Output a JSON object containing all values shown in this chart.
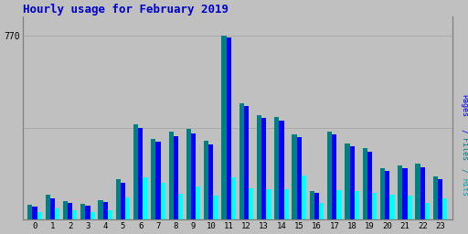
{
  "title": "Hourly usage for February 2019",
  "title_color": "#0000cc",
  "title_fontsize": 9,
  "hours": [
    0,
    1,
    2,
    3,
    4,
    5,
    6,
    7,
    8,
    9,
    10,
    11,
    12,
    13,
    14,
    15,
    16,
    17,
    18,
    19,
    20,
    21,
    22,
    23
  ],
  "pages": [
    55,
    90,
    70,
    58,
    72,
    155,
    385,
    325,
    350,
    360,
    315,
    765,
    475,
    425,
    415,
    345,
    110,
    355,
    305,
    285,
    205,
    215,
    220,
    170
  ],
  "files": [
    62,
    102,
    78,
    65,
    82,
    170,
    398,
    338,
    368,
    380,
    328,
    772,
    488,
    438,
    428,
    358,
    118,
    368,
    318,
    298,
    213,
    228,
    233,
    182
  ],
  "hits": [
    32,
    45,
    38,
    30,
    38,
    92,
    175,
    155,
    108,
    138,
    100,
    175,
    130,
    125,
    128,
    185,
    68,
    122,
    118,
    112,
    105,
    98,
    68,
    88
  ],
  "pages_color": "#0000ff",
  "files_color": "#008080",
  "hits_color": "#00ffff",
  "bg_color": "#c0c0c0",
  "plot_bg_color": "#c0c0c0",
  "ytick_label": "770",
  "ylim": [
    0,
    850
  ],
  "bar_width": 0.27,
  "figwidth": 5.12,
  "figheight": 2.56,
  "dpi": 100
}
